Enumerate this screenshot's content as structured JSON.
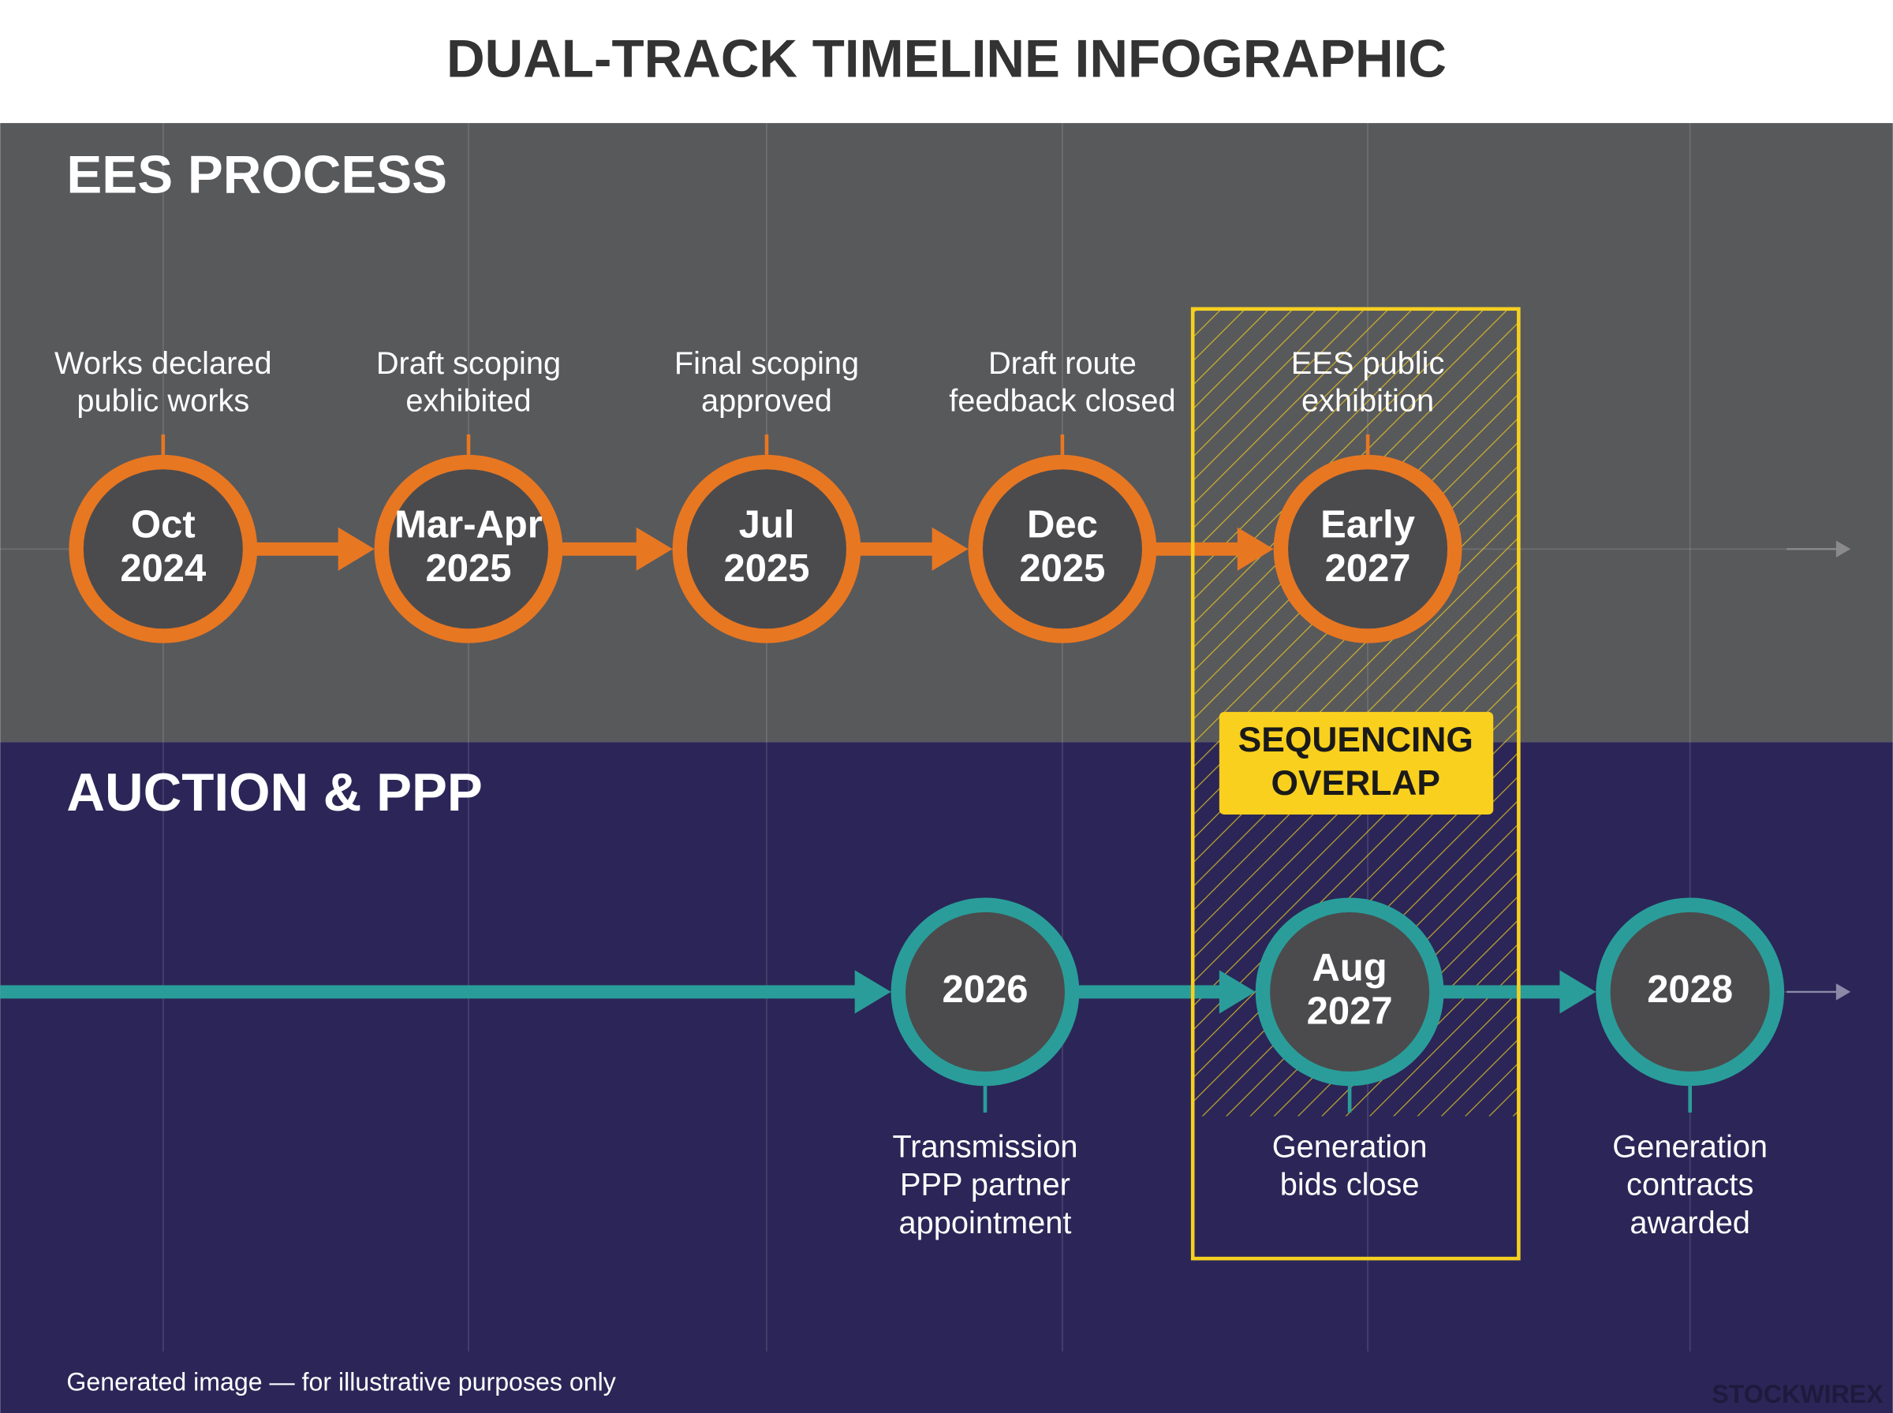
{
  "title": "DUAL-TRACK TIMELINE INFOGRAPHIC",
  "tracks": [
    {
      "name": "EES PROCESS",
      "milestones": [
        {
          "date": [
            "Oct",
            "2024"
          ],
          "label": [
            "Works declared",
            "public works"
          ]
        },
        {
          "date": [
            "Mar-Apr",
            "2025"
          ],
          "label": [
            "Draft scoping",
            "exhibited"
          ]
        },
        {
          "date": [
            "Jul",
            "2025"
          ],
          "label": [
            "Final scoping",
            "approved"
          ]
        },
        {
          "date": [
            "Dec",
            "2025"
          ],
          "label": [
            "Draft route",
            "feedback closed"
          ]
        },
        {
          "date": [
            "Early",
            "2027"
          ],
          "label": [
            "EES public",
            "exhibition"
          ]
        }
      ]
    },
    {
      "name": "AUCTION & PPP",
      "milestones": [
        {
          "date": [
            "2026"
          ],
          "label": [
            "Transmission",
            "PPP partner",
            "appointment"
          ]
        },
        {
          "date": [
            "Aug",
            "2027"
          ],
          "label": [
            "Generation",
            "bids close"
          ]
        },
        {
          "date": [
            "2028"
          ],
          "label": [
            "Generation",
            "contracts",
            "awarded"
          ]
        }
      ]
    }
  ],
  "overlap": [
    "SEQUENCING",
    "OVERLAP"
  ],
  "footer": "Generated image — for illustrative purposes only",
  "watermark": "STOCKWIREX"
}
